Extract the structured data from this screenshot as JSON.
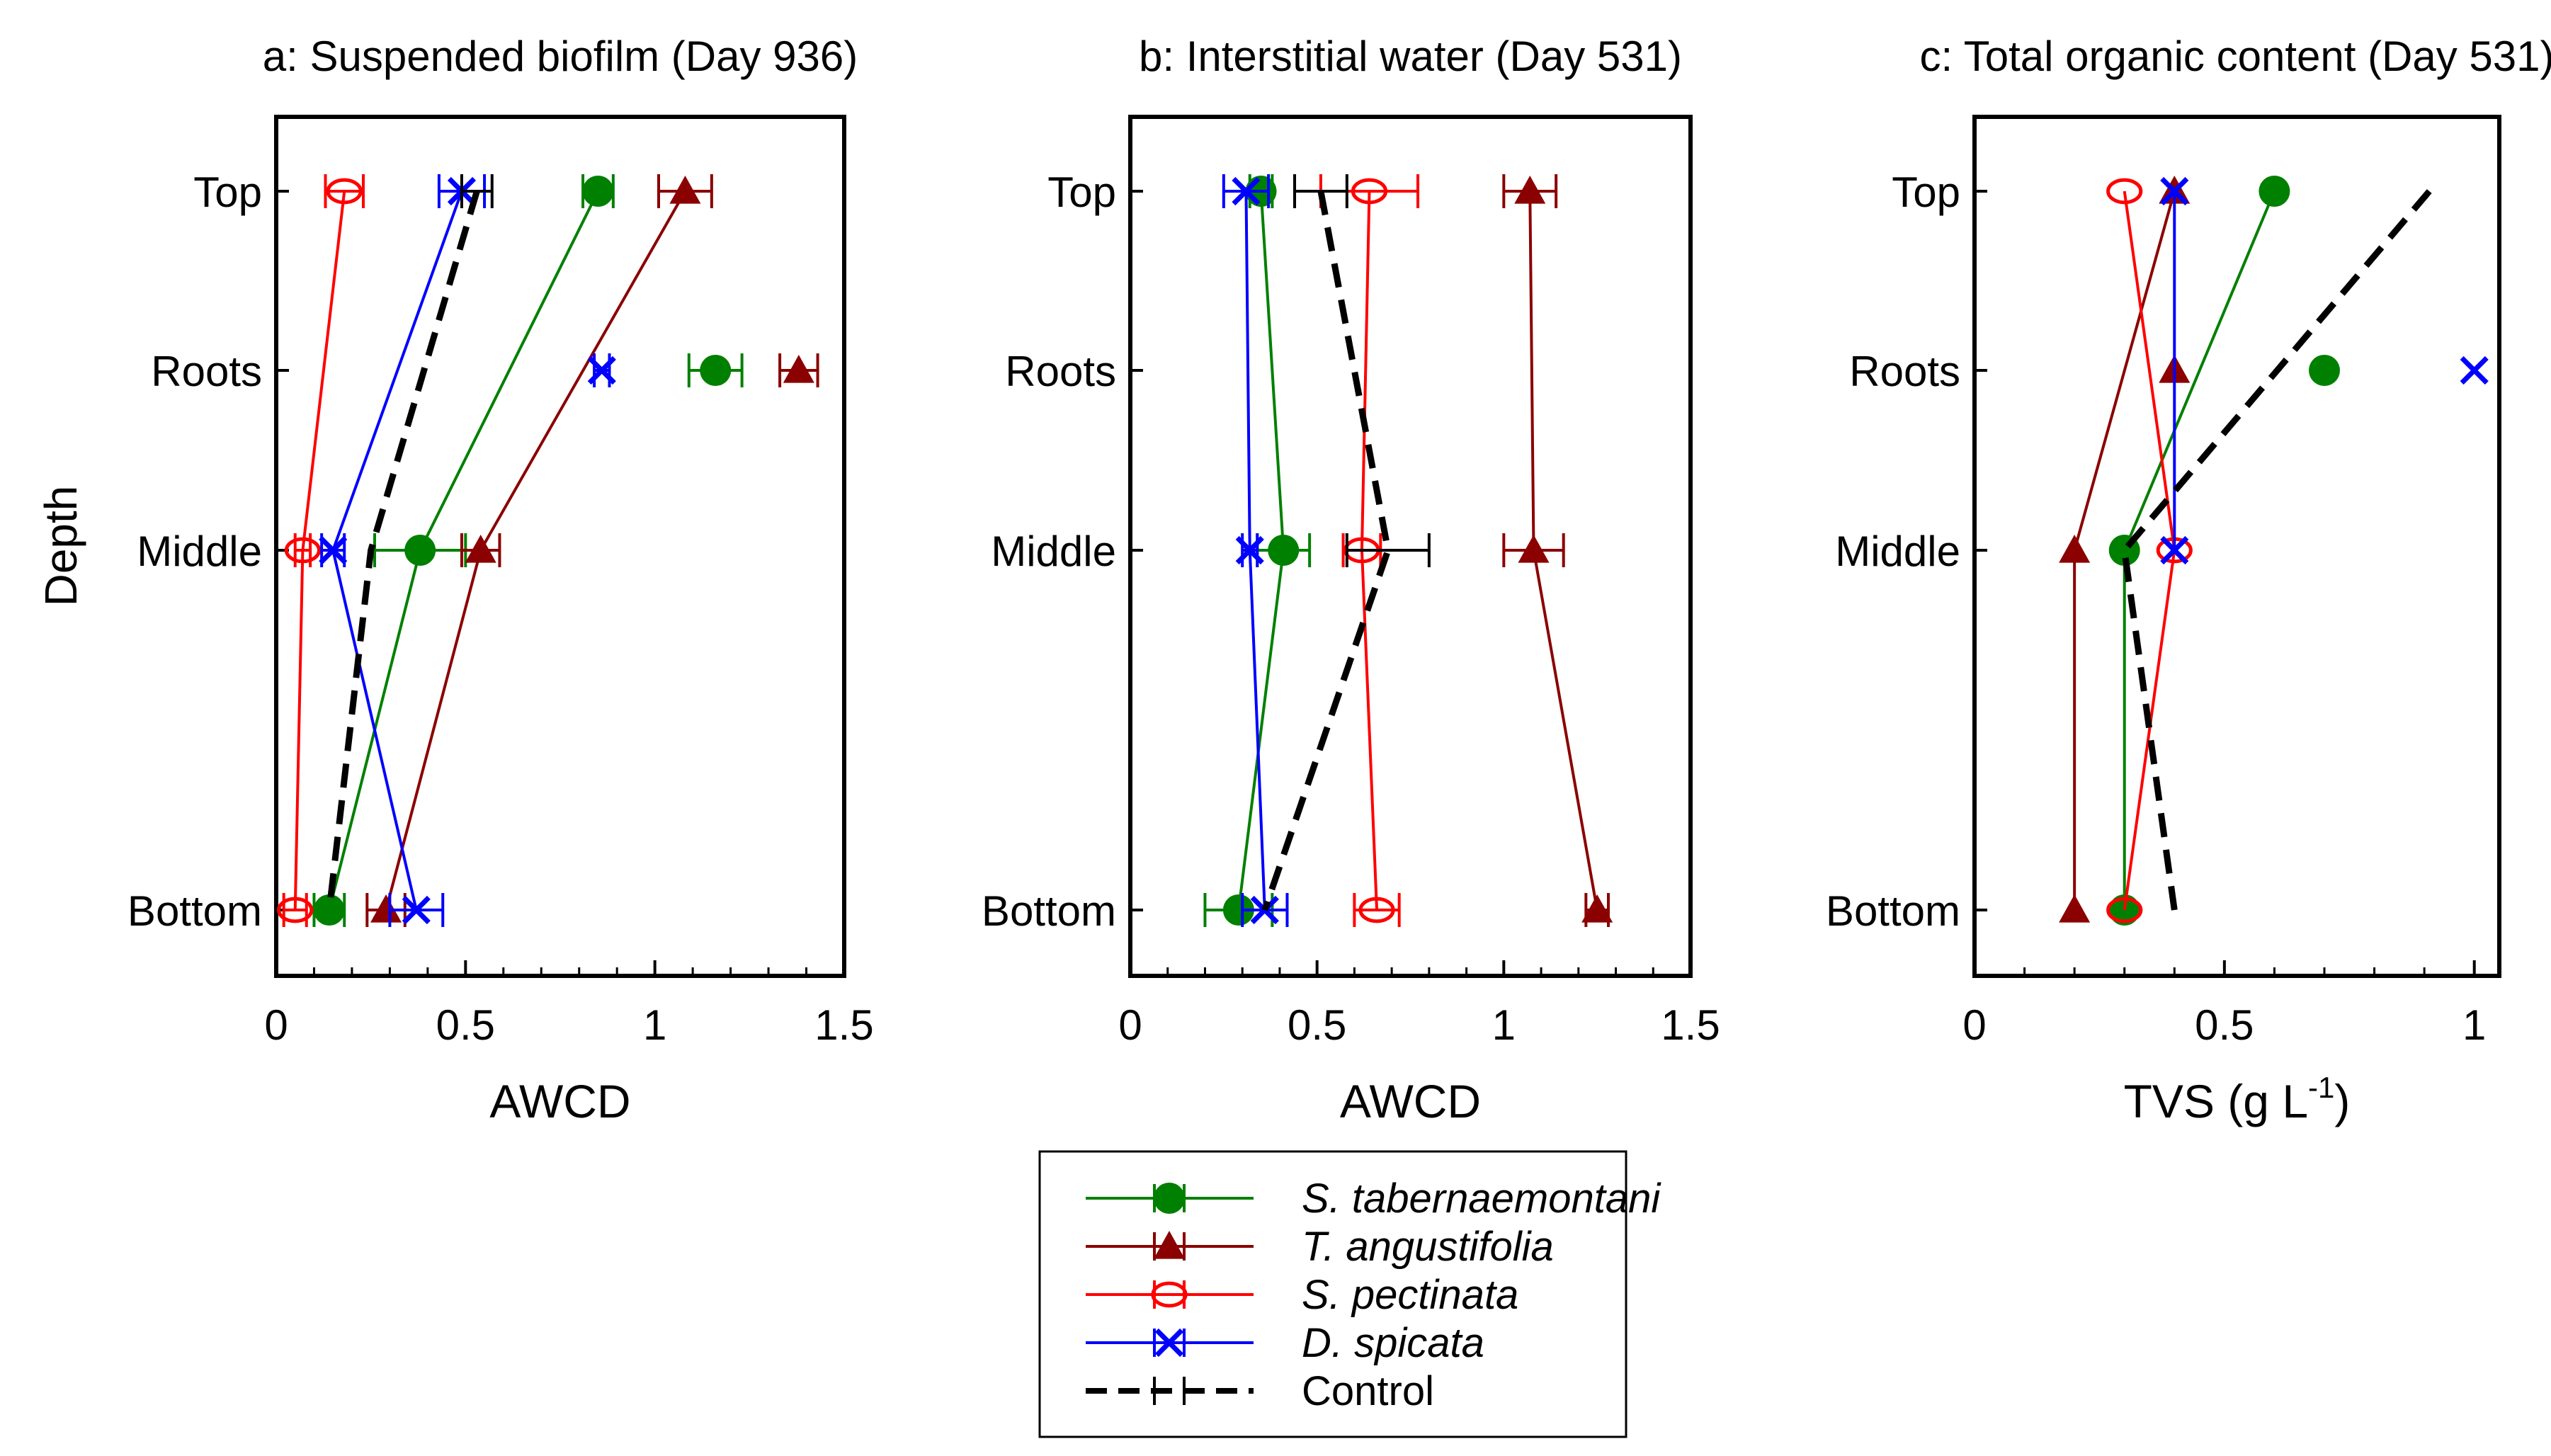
{
  "chart_data": {
    "type": "line",
    "y_label": "Depth",
    "depth_levels": [
      "Top",
      "Roots",
      "Middle",
      "Bottom"
    ],
    "depth_positions": [
      0,
      1,
      2,
      4
    ],
    "legend": {
      "placement": "bottom-center",
      "entries": [
        {
          "name": "S. tabernaemontani",
          "color": "#008000",
          "marker": "circle",
          "italic": true
        },
        {
          "name": "T. angustifolia",
          "color": "#8b0000",
          "marker": "triangle",
          "italic": true
        },
        {
          "name": "S. pectinata",
          "color": "#ff0000",
          "marker": "ellipse-open",
          "italic": true
        },
        {
          "name": "D. spicata",
          "color": "#0000ff",
          "marker": "x",
          "italic": true
        },
        {
          "name": "Control",
          "color": "#000000",
          "marker": "none",
          "italic": false
        }
      ]
    },
    "panels": [
      {
        "title": "a: Suspended biofilm (Day 936)",
        "xlabel": "AWCD",
        "xlabel_super": "",
        "xlabel_end": "",
        "xlim": [
          0,
          1.5
        ],
        "xticks": [
          0,
          0.5,
          1,
          1.5
        ],
        "xtick_labels": [
          "0",
          "0.5",
          "1",
          "1.5"
        ],
        "series": [
          {
            "name": "S. tabernaemontani",
            "values": [
              0.85,
              1.16,
              0.38,
              0.14
            ],
            "errors": [
              0.04,
              0.07,
              0.12,
              0.04
            ],
            "connect": [
              0,
              2,
              3
            ]
          },
          {
            "name": "T. angustifolia",
            "values": [
              1.08,
              1.38,
              0.54,
              0.29
            ],
            "errors": [
              0.07,
              0.05,
              0.05,
              0.05
            ],
            "connect": [
              0,
              2,
              3
            ]
          },
          {
            "name": "S. pectinata",
            "values": [
              0.18,
              null,
              0.07,
              0.05
            ],
            "errors": [
              0.05,
              null,
              0.02,
              0.03
            ],
            "connect": [
              0,
              2,
              3
            ]
          },
          {
            "name": "D. spicata",
            "values": [
              0.49,
              0.86,
              0.15,
              0.37
            ],
            "errors": [
              0.06,
              0.02,
              0.03,
              0.07
            ],
            "connect": [
              0,
              2,
              3
            ]
          },
          {
            "name": "Control",
            "values": [
              0.53,
              null,
              0.25,
              0.14
            ],
            "errors": [
              0.04,
              null,
              null,
              null
            ],
            "connect": [
              0,
              2,
              3
            ]
          }
        ]
      },
      {
        "title": "b: Interstitial water (Day 531)",
        "xlabel": "AWCD",
        "xlabel_super": "",
        "xlabel_end": "",
        "xlim": [
          0,
          1.5
        ],
        "xticks": [
          0,
          0.5,
          1,
          1.5
        ],
        "xtick_labels": [
          "0",
          "0.5",
          "1",
          "1.5"
        ],
        "series": [
          {
            "name": "S. tabernaemontani",
            "values": [
              0.35,
              null,
              0.41,
              0.29
            ],
            "errors": [
              0.03,
              null,
              0.07,
              0.09
            ],
            "connect": [
              0,
              2,
              3
            ]
          },
          {
            "name": "T. angustifolia",
            "values": [
              1.07,
              null,
              1.08,
              1.25
            ],
            "errors": [
              0.07,
              null,
              0.08,
              0.03
            ],
            "connect": [
              0,
              2,
              3
            ]
          },
          {
            "name": "S. pectinata",
            "values": [
              0.64,
              null,
              0.62,
              0.66
            ],
            "errors": [
              0.13,
              null,
              0.05,
              0.06
            ],
            "connect": [
              0,
              2,
              3
            ]
          },
          {
            "name": "D. spicata",
            "values": [
              0.31,
              null,
              0.32,
              0.36
            ],
            "errors": [
              0.06,
              null,
              0.02,
              0.06
            ],
            "connect": [
              0,
              2,
              3
            ]
          },
          {
            "name": "Control",
            "values": [
              0.51,
              null,
              0.69,
              0.36
            ],
            "errors": [
              0.07,
              null,
              0.11,
              null
            ],
            "connect": [
              0,
              2,
              3
            ]
          }
        ]
      },
      {
        "title": "c: Total organic content (Day 531)",
        "xlabel": "TVS (g L",
        "xlabel_super": "-1",
        "xlabel_end": ")",
        "xlim": [
          0,
          1.05
        ],
        "xticks": [
          0,
          0.5,
          1
        ],
        "xtick_labels": [
          "0",
          "0.5",
          "1"
        ],
        "series": [
          {
            "name": "S. tabernaemontani",
            "values": [
              0.6,
              0.7,
              0.3,
              0.3
            ],
            "errors": [
              null,
              null,
              null,
              null
            ],
            "connect": [
              0,
              2,
              3
            ]
          },
          {
            "name": "T. angustifolia",
            "values": [
              0.4,
              0.4,
              0.2,
              0.2
            ],
            "errors": [
              null,
              null,
              null,
              null
            ],
            "connect": [
              0,
              2,
              3
            ]
          },
          {
            "name": "S. pectinata",
            "values": [
              0.3,
              null,
              0.4,
              0.3
            ],
            "errors": [
              null,
              null,
              null,
              null
            ],
            "connect": [
              0,
              2,
              3
            ]
          },
          {
            "name": "D. spicata",
            "values": [
              0.4,
              1.0,
              0.4,
              null
            ],
            "errors": [
              null,
              null,
              null,
              null
            ],
            "connect": [
              0,
              2
            ]
          },
          {
            "name": "Control",
            "values": [
              0.91,
              null,
              0.3,
              0.4
            ],
            "errors": [
              null,
              null,
              null,
              null
            ],
            "connect": [
              0,
              2,
              3
            ]
          }
        ]
      }
    ]
  }
}
